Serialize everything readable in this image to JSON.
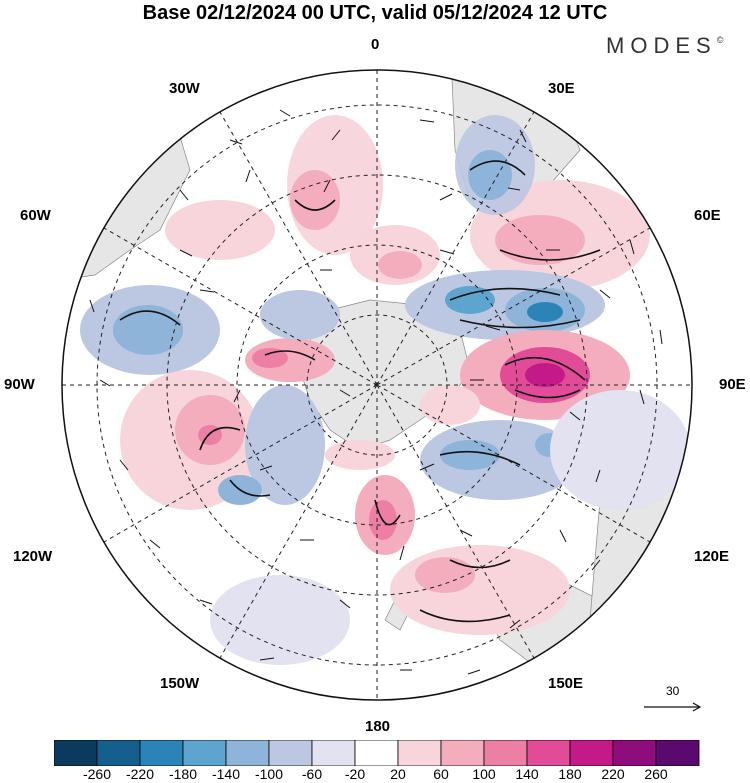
{
  "title": "Base 02/12/2024 00 UTC, valid 05/12/2024 12 UTC",
  "logo": "MODES",
  "logo_mark": "©",
  "longitude_labels": {
    "top": "0",
    "top_left": "30W",
    "top_right": "30E",
    "upper_left": "60W",
    "upper_right": "60E",
    "left": "90W",
    "right": "90E",
    "lower_left": "120W",
    "lower_right": "120E",
    "bottom_left": "150W",
    "bottom_right": "150E",
    "bottom": "180"
  },
  "reference_vector": "30",
  "colorbar": {
    "labels": [
      "-260",
      "-220",
      "-180",
      "-140",
      "-100",
      "-60",
      "-20",
      "20",
      "60",
      "100",
      "140",
      "180",
      "220",
      "260"
    ],
    "colors": [
      "#0b3a5c",
      "#155f8f",
      "#2b83b8",
      "#5da4cf",
      "#8fb4d9",
      "#bcc7e2",
      "#e2e2f0",
      "#ffffff",
      "#f7d5db",
      "#f4adbd",
      "#ee7fa4",
      "#e24b97",
      "#c41a89",
      "#8e0c7c",
      "#5a0a6e"
    ]
  }
}
